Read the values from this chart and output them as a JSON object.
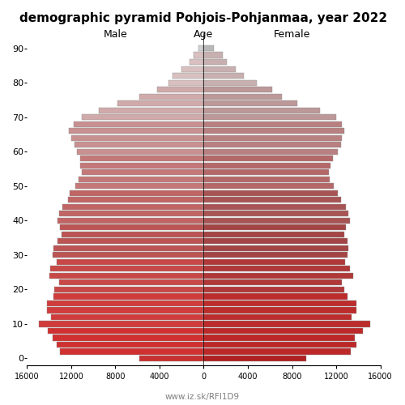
{
  "title": "demographic pyramid Pohjois-Pohjanmaa, year 2022",
  "ages": [
    0,
    2,
    4,
    6,
    8,
    10,
    12,
    14,
    16,
    18,
    20,
    22,
    24,
    26,
    28,
    30,
    32,
    34,
    36,
    38,
    40,
    42,
    44,
    46,
    48,
    50,
    52,
    54,
    56,
    58,
    60,
    62,
    64,
    66,
    68,
    70,
    72,
    74,
    76,
    78,
    80,
    82,
    84,
    86,
    88,
    90
  ],
  "male": [
    5800,
    13000,
    13300,
    13700,
    14100,
    14900,
    13800,
    14200,
    14200,
    13600,
    13500,
    13100,
    14000,
    13900,
    13300,
    13700,
    13600,
    13200,
    12900,
    13000,
    13200,
    13100,
    12800,
    12300,
    12100,
    11600,
    11300,
    11000,
    11200,
    11200,
    11500,
    11700,
    12000,
    12200,
    11800,
    11000,
    9500,
    7800,
    5800,
    4200,
    3200,
    2800,
    2000,
    1300,
    900,
    500
  ],
  "female": [
    9300,
    13300,
    13800,
    13700,
    14400,
    15100,
    13400,
    13800,
    13800,
    13000,
    12700,
    12500,
    13500,
    13200,
    12800,
    13000,
    13100,
    13000,
    12700,
    12900,
    13200,
    13100,
    12900,
    12400,
    12100,
    11800,
    11400,
    11300,
    11500,
    11700,
    12100,
    12400,
    12500,
    12700,
    12500,
    12000,
    10500,
    8500,
    7100,
    6200,
    4800,
    3600,
    2900,
    2100,
    1700,
    900
  ],
  "age_ticks": [
    0,
    10,
    20,
    30,
    40,
    50,
    60,
    70,
    80,
    90
  ],
  "xlim": 16000,
  "xticks": [
    -16000,
    -12000,
    -8000,
    -4000,
    0,
    4000,
    8000,
    12000,
    16000
  ],
  "xticklabels": [
    "16000",
    "12000",
    "8000",
    "4000",
    "0",
    "4000",
    "8000",
    "12000",
    "16000"
  ],
  "title_text": "demographic pyramid Pohjois-Pohjanmaa, year 2022",
  "label_male": "Male",
  "label_female": "Female",
  "label_age": "Age",
  "footer": "www.iz.sk/RFI1D9",
  "bar_height": 0.85,
  "colors": {
    "male_90plus": "#d0d0d0",
    "male_80s": "#d8c0c0",
    "male_70s": "#d0aaaa",
    "male_60s": "#c89090",
    "male_50s": "#c47878",
    "male_40s": "#c06464",
    "male_30s": "#bc5454",
    "male_20s": "#c84848",
    "male_teens": "#d03c3c",
    "male_kids": "#d03030",
    "male_0": "#c83030",
    "female_90plus": "#b8b8b8",
    "female_80s": "#c8b0b0",
    "female_70s": "#bc9898",
    "female_60s": "#b88080",
    "female_50s": "#b46868",
    "female_40s": "#a85454",
    "female_30s": "#a44444",
    "female_20s": "#b03838",
    "female_teens": "#bc2c2c",
    "female_kids": "#bc2828",
    "female_0": "#b02020"
  }
}
